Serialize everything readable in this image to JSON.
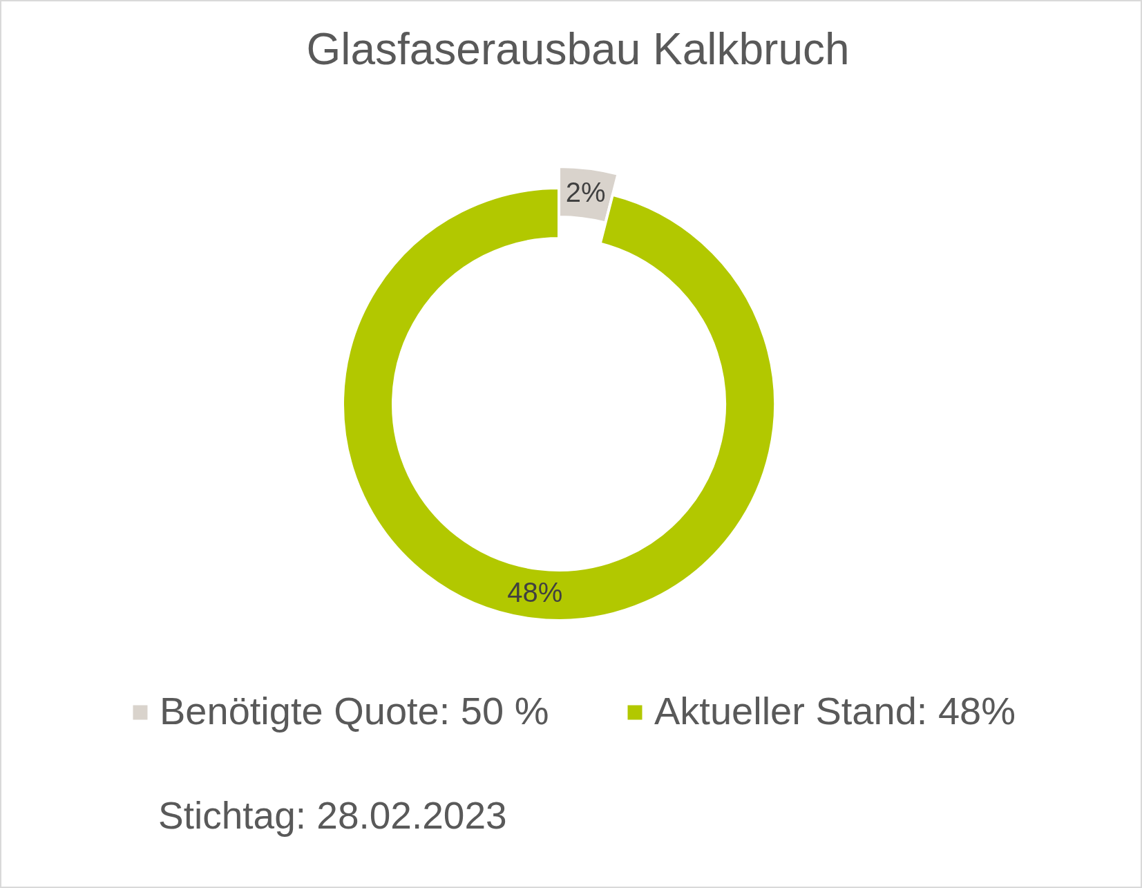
{
  "chart_data": {
    "type": "donut",
    "title": "Glasfaserausbau Kalkbruch",
    "categories": [
      "Benötigte Quote: 50 %",
      "Aktueller Stand: 48%"
    ],
    "values": [
      2,
      48
    ],
    "colors": [
      "#d9d3cc",
      "#b2c800"
    ],
    "value_labels": [
      "2%",
      "48%"
    ],
    "legend": "bottom",
    "annotations": [
      "Stichtag: 28.02.2023"
    ]
  }
}
